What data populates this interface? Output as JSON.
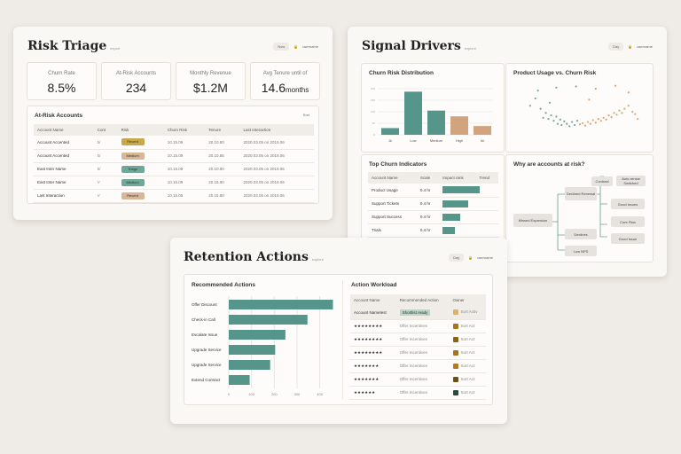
{
  "risk_triage": {
    "title": "Risk Triage",
    "subtitle": "export",
    "filter": "Now",
    "user": "username",
    "kpis": [
      {
        "label": "Churn Rate",
        "value": "8.5%",
        "unit": ""
      },
      {
        "label": "At-Risk Accounts",
        "value": "234",
        "unit": ""
      },
      {
        "label": "Monthly Revenue",
        "value": "$1.2M",
        "unit": ""
      },
      {
        "label": "Avg Tenure until of",
        "value": "14.6",
        "unit": "months"
      }
    ],
    "table": {
      "title": "At-Risk Accounts",
      "sort": "Sort",
      "columns": [
        "Account Name",
        "Cont",
        "Risk",
        "Churn Risk",
        "Tenure",
        "Last Interaction"
      ],
      "rows": [
        {
          "name": "Account Accented",
          "cont": "5/",
          "risk": "Recent",
          "risk_color": "#c9a84a",
          "churn": "10.15.09",
          "tenure": "20.10.80",
          "last": "2020.03.05 on 2019.06"
        },
        {
          "name": "Account Accented",
          "cont": "5/",
          "risk": "Medium",
          "risk_color": "#d8b698",
          "churn": "10.15.09",
          "tenure": "20.10.85",
          "last": "2020.03.05 on 2019.06"
        },
        {
          "name": "East Inter Name",
          "cont": "5/",
          "risk": "Triage",
          "risk_color": "#6fa898",
          "churn": "10.15.09",
          "tenure": "20.10.80",
          "last": "2020.03.05 on 2019.06"
        },
        {
          "name": "East Inter Name",
          "cont": "V",
          "risk": "Medium",
          "risk_color": "#6fa898",
          "churn": "10.15.09",
          "tenure": "20.15.90",
          "last": "2020.03.05 on 2019.06"
        },
        {
          "name": "Last Interaction",
          "cont": "V",
          "risk": "Recent",
          "risk_color": "#d8b698",
          "churn": "10.15.09",
          "tenure": "20.15.80",
          "last": "2020.03.05 on 2019.06"
        }
      ]
    }
  },
  "signal_drivers": {
    "title": "Signal Drivers",
    "subtitle": "explore",
    "filter": "Day",
    "user": "username",
    "indicators": {
      "title": "Top Churn Indicators",
      "columns": [
        "Account Name",
        "Scale",
        "Impact rank",
        "Trend"
      ],
      "rows": [
        {
          "name": "Product Usage",
          "scale": "0.4 hr",
          "impact": 0.95
        },
        {
          "name": "Support Tickets",
          "scale": "0.4 hr",
          "impact": 0.65
        },
        {
          "name": "Support Success",
          "scale": "0.4 hr",
          "impact": 0.45
        },
        {
          "name": "Trials",
          "scale": "0.4 hr",
          "impact": 0.32
        },
        {
          "name": "NPS Scored",
          "scale": "0.4 hr",
          "impact": 0.2
        }
      ]
    },
    "tree": {
      "title": "Why are accounts at risk?",
      "root": "Missed Expansion",
      "mid": [
        "Declined Renewal",
        "Declines",
        "Low NPS"
      ],
      "top": [
        "Contract",
        "Auto-renew Switched"
      ],
      "leaves": [
        "Good Issues",
        "Core Plan",
        "Good Issue"
      ]
    }
  },
  "retention_actions": {
    "title": "Retention Actions",
    "subtitle": "explore",
    "filter": "Day",
    "user": "username",
    "workload": {
      "title": "Action Workload",
      "columns": [
        "Account Name",
        "Recommended Action",
        "Owner"
      ],
      "rows": [
        {
          "name": "Account Nametest",
          "action": "Shortlist ready",
          "owner": "Sort Activ",
          "color": "#d9b46a"
        },
        {
          "name": "★★★★★★★★",
          "action": "Offer Incentives",
          "owner": "Sort Act",
          "color": "#a8731f"
        },
        {
          "name": "★★★★★★★★",
          "action": "Offer Incentives",
          "owner": "Sort Act",
          "color": "#8a6214"
        },
        {
          "name": "★★★★★★★★",
          "action": "Offer Incentives",
          "owner": "Sort Act",
          "color": "#a8731f"
        },
        {
          "name": "★★★★★★★",
          "action": "Offer Incentives",
          "owner": "Sort Act",
          "color": "#b07b22"
        },
        {
          "name": "★★★★★★★",
          "action": "Offer Incentives",
          "owner": "Sort Act",
          "color": "#6b4f14"
        },
        {
          "name": "★★★★★★",
          "action": "Offer Incentives",
          "owner": "Sort Act",
          "color": "#2e4a3c"
        }
      ]
    }
  },
  "chart_data": [
    {
      "type": "bar",
      "title": "Churn Risk Distribution",
      "categories": [
        "Jk",
        "Low",
        "Medium",
        "High",
        "Irk"
      ],
      "values": [
        29,
        187,
        105,
        80,
        38
      ],
      "colors": [
        "#55958a",
        "#55958a",
        "#55958a",
        "#d2a47d",
        "#d2a47d"
      ],
      "ylim": [
        0,
        200
      ],
      "yticks": [
        0,
        50,
        100,
        150,
        200
      ]
    },
    {
      "type": "scatter",
      "title": "Product Usage vs. Churn Risk",
      "points": [
        [
          10,
          60
        ],
        [
          14,
          72
        ],
        [
          18,
          55
        ],
        [
          20,
          40
        ],
        [
          22,
          48
        ],
        [
          24,
          38
        ],
        [
          26,
          44
        ],
        [
          28,
          35
        ],
        [
          30,
          42
        ],
        [
          31,
          30
        ],
        [
          33,
          37
        ],
        [
          34,
          28
        ],
        [
          36,
          34
        ],
        [
          38,
          30
        ],
        [
          40,
          26
        ],
        [
          42,
          33
        ],
        [
          44,
          28
        ],
        [
          46,
          35
        ],
        [
          48,
          29
        ],
        [
          50,
          31
        ],
        [
          52,
          27
        ],
        [
          54,
          33
        ],
        [
          56,
          30
        ],
        [
          58,
          36
        ],
        [
          60,
          32
        ],
        [
          62,
          38
        ],
        [
          64,
          35
        ],
        [
          66,
          40
        ],
        [
          68,
          37
        ],
        [
          70,
          44
        ],
        [
          72,
          41
        ],
        [
          74,
          48
        ],
        [
          76,
          45
        ],
        [
          78,
          52
        ],
        [
          80,
          48
        ],
        [
          82,
          55
        ],
        [
          85,
          60
        ],
        [
          88,
          50
        ],
        [
          90,
          46
        ],
        [
          92,
          38
        ],
        [
          16,
          85
        ],
        [
          30,
          90
        ],
        [
          45,
          92
        ],
        [
          60,
          88
        ],
        [
          75,
          93
        ],
        [
          85,
          82
        ],
        [
          25,
          65
        ],
        [
          55,
          70
        ]
      ],
      "series_colors": [
        "#4f8f84",
        "#d28f4f"
      ],
      "xlim": [
        0,
        100
      ],
      "ylim": [
        0,
        100
      ]
    },
    {
      "type": "bar",
      "orientation": "horizontal",
      "title": "Recommended Actions",
      "categories": [
        "Offer Discount",
        "Check-in Call",
        "Escalate Issue",
        "Upgrade Service",
        "Upgrade Service",
        "Extend Contract"
      ],
      "values": [
        458,
        346,
        249,
        204,
        182,
        92
      ],
      "xlim": [
        0,
        460
      ],
      "xticks": [
        0,
        100,
        200,
        300,
        400
      ]
    }
  ]
}
